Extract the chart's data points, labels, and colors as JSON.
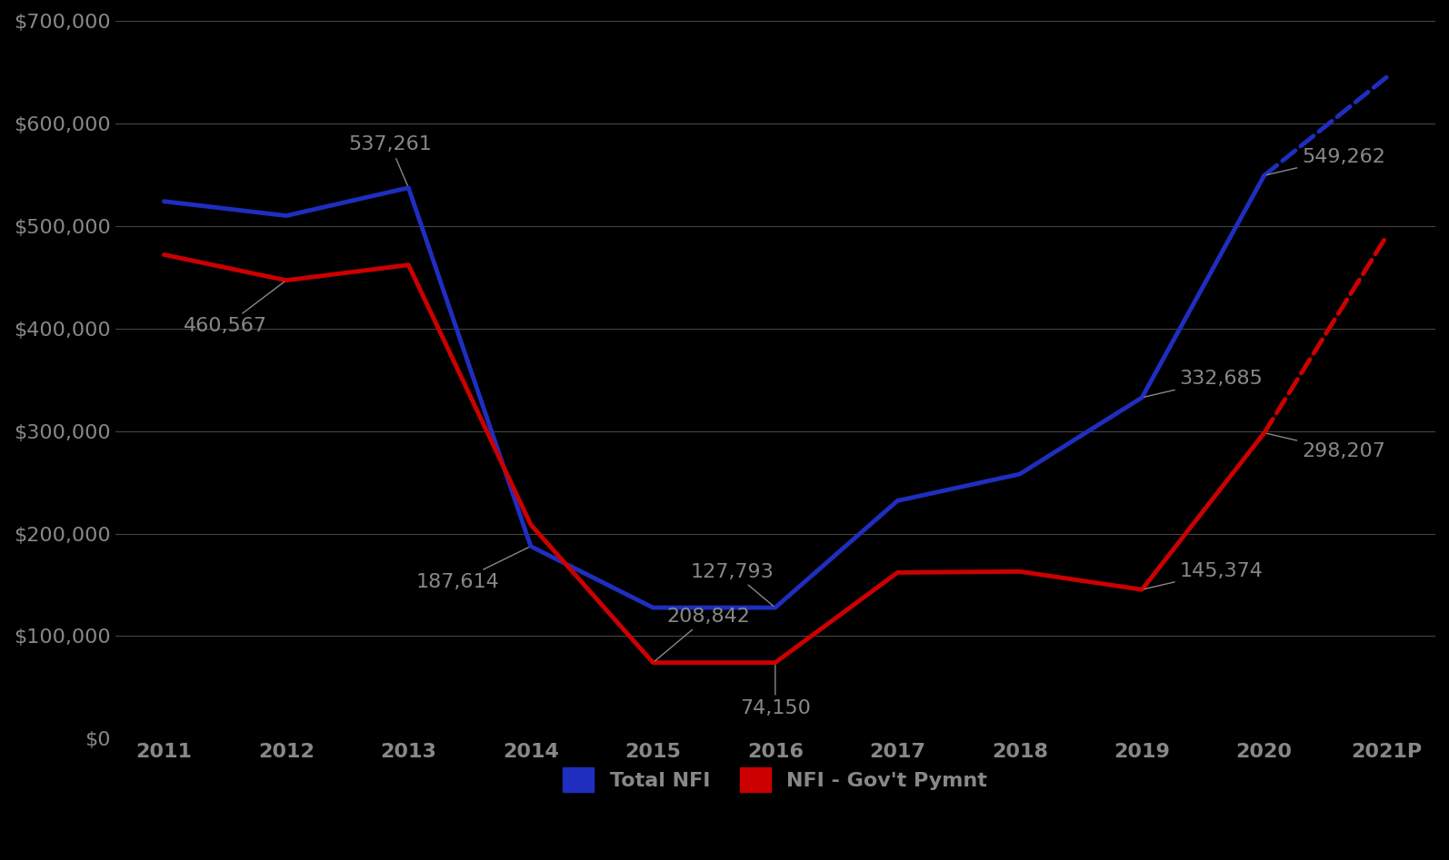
{
  "years": [
    "2011",
    "2012",
    "2013",
    "2014",
    "2015",
    "2016",
    "2017",
    "2018",
    "2019",
    "2020",
    "2021P"
  ],
  "total_nfi": [
    524000,
    510000,
    537261,
    187614,
    127793,
    127793,
    232000,
    258000,
    332685,
    549262,
    645000
  ],
  "nfi_gov_pymnt": [
    472000,
    447000,
    462000,
    208842,
    74150,
    74150,
    162000,
    163000,
    145374,
    298207,
    490000
  ],
  "total_nfi_color": "#1F2EBF",
  "nfi_gov_pymnt_color": "#CC0000",
  "background_color": "#000000",
  "plot_bg_color": "#000000",
  "grid_color": "#555555",
  "text_color": "#888888",
  "annotation_color": "#888888",
  "ylim": [
    0,
    700000
  ],
  "yticks": [
    0,
    100000,
    200000,
    300000,
    400000,
    500000,
    600000,
    700000
  ],
  "line_width": 3.5,
  "legend_label_nfi": "Total NFI",
  "legend_label_gov": "NFI - Gov't Pymnt",
  "ann_fontsize": 16
}
